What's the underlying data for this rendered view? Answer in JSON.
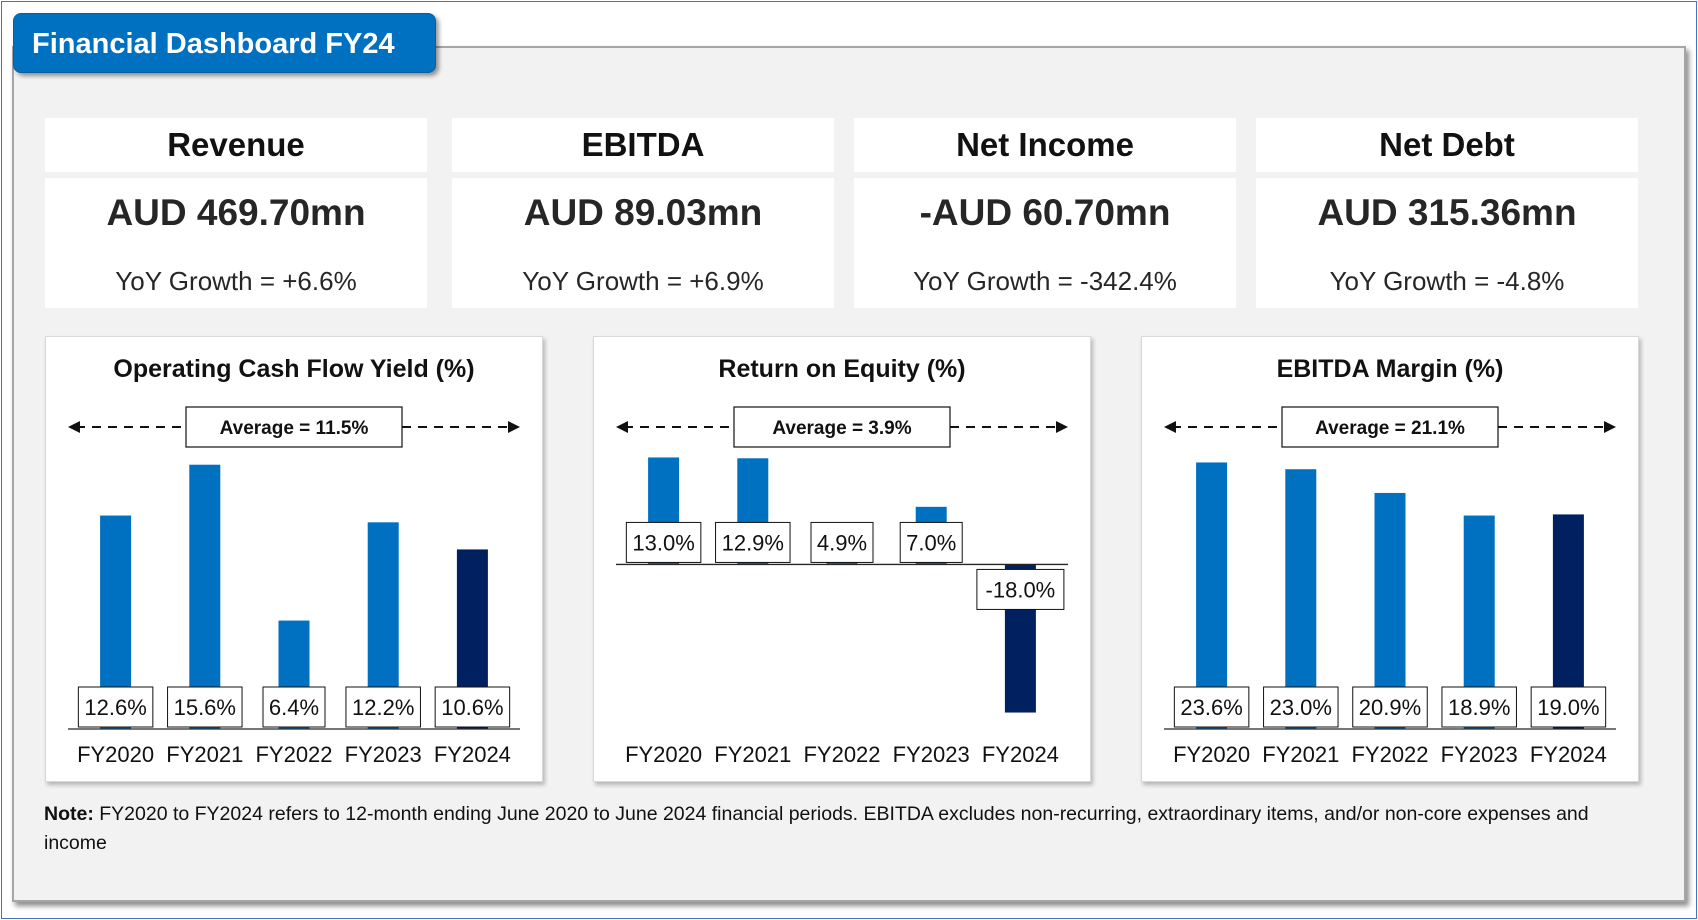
{
  "title": "Financial Dashboard FY24",
  "kpis": [
    {
      "label": "Revenue",
      "value": "AUD 469.70mn",
      "growth": "YoY Growth = +6.6%"
    },
    {
      "label": "EBITDA",
      "value": "AUD 89.03mn",
      "growth": "YoY Growth = +6.9%"
    },
    {
      "label": "Net Income",
      "value": "-AUD 60.70mn",
      "growth": "YoY Growth = -342.4%"
    },
    {
      "label": "Net Debt",
      "value": "AUD 315.36mn",
      "growth": "YoY Growth = -4.8%"
    }
  ],
  "colors": {
    "bar": "#0070c0",
    "bar_latest": "#002060",
    "title_bg": "#0070c0"
  },
  "chart_data": [
    {
      "type": "bar",
      "title": "Operating Cash Flow Yield (%)",
      "categories": [
        "FY2020",
        "FY2021",
        "FY2022",
        "FY2023",
        "FY2024"
      ],
      "values": [
        12.6,
        15.6,
        6.4,
        12.2,
        10.6
      ],
      "labels": [
        "12.6%",
        "15.6%",
        "6.4%",
        "12.2%",
        "10.6%"
      ],
      "average_label": "Average = 11.5%",
      "ylim": [
        0,
        17
      ]
    },
    {
      "type": "bar",
      "title": "Return on Equity (%)",
      "categories": [
        "FY2020",
        "FY2021",
        "FY2022",
        "FY2023",
        "FY2024"
      ],
      "values": [
        13.0,
        12.9,
        4.9,
        7.0,
        -18.0
      ],
      "labels": [
        "13.0%",
        "12.9%",
        "4.9%",
        "7.0%",
        "-18.0%"
      ],
      "average_label": "Average = 3.9%",
      "ylim": [
        -20,
        15
      ]
    },
    {
      "type": "bar",
      "title": "EBITDA Margin (%)",
      "categories": [
        "FY2020",
        "FY2021",
        "FY2022",
        "FY2023",
        "FY2024"
      ],
      "values": [
        23.6,
        23.0,
        20.9,
        18.9,
        19.0
      ],
      "labels": [
        "23.6%",
        "23.0%",
        "20.9%",
        "18.9%",
        "19.0%"
      ],
      "average_label": "Average = 21.1%",
      "ylim": [
        0,
        25.5
      ]
    }
  ],
  "note": {
    "label": "Note:",
    "text": " FY2020 to FY2024 refers to 12-month ending June 2020 to June 2024 financial periods. EBITDA excludes non-recurring, extraordinary items, and/or non-core expenses and income"
  }
}
